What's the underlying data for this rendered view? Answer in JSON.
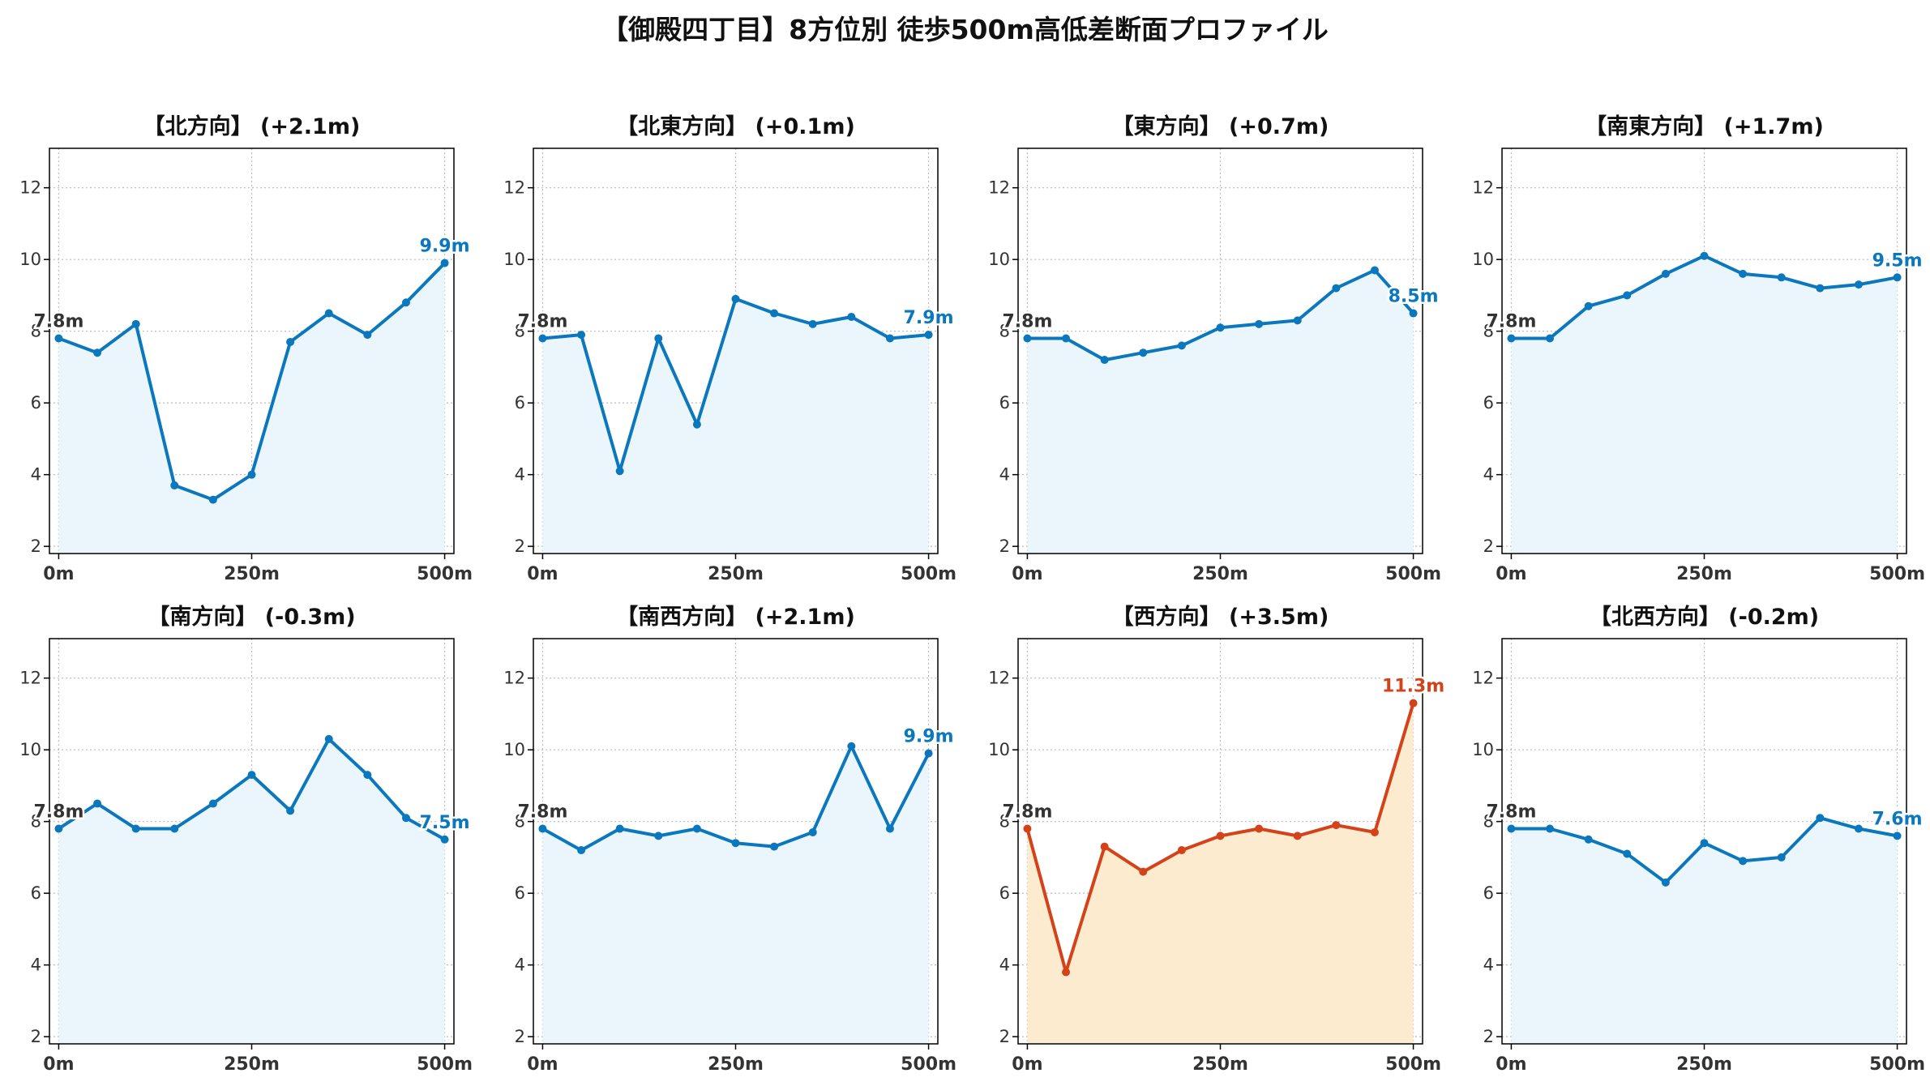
{
  "title": "【御殿四丁目】8方位別 徒歩500m高低差断面プロファイル",
  "colors": {
    "normal_line": "#0b77bd",
    "normal_fill": "#eaf6fb",
    "highlight_line": "#d4421a",
    "highlight_fill": "#fdebd0",
    "grid": "#bbbbbb",
    "start_label": "#333333"
  },
  "chart_data": [
    {
      "type": "area",
      "title": "【北方向】 (+2.1m)",
      "x": [
        0,
        50,
        100,
        150,
        200,
        250,
        300,
        350,
        400,
        450,
        500
      ],
      "y": [
        7.8,
        7.4,
        8.2,
        3.7,
        3.3,
        4.0,
        7.7,
        8.5,
        7.9,
        8.8,
        9.9
      ],
      "start_label": "7.8m",
      "end_label": "9.9m",
      "highlight": false,
      "x_tick_labels": [
        "0m",
        "250m",
        "500m"
      ],
      "y_ticks": [
        2,
        4,
        6,
        8,
        10,
        12
      ],
      "ylim": [
        1.8,
        13.1
      ],
      "xlim": [
        -12,
        512
      ],
      "grid": true
    },
    {
      "type": "area",
      "title": "【北東方向】 (+0.1m)",
      "x": [
        0,
        50,
        100,
        150,
        200,
        250,
        300,
        350,
        400,
        450,
        500
      ],
      "y": [
        7.8,
        7.9,
        4.1,
        7.8,
        5.4,
        8.9,
        8.5,
        8.2,
        8.4,
        7.8,
        7.9
      ],
      "start_label": "7.8m",
      "end_label": "7.9m",
      "highlight": false,
      "x_tick_labels": [
        "0m",
        "250m",
        "500m"
      ],
      "y_ticks": [
        2,
        4,
        6,
        8,
        10,
        12
      ],
      "ylim": [
        1.8,
        13.1
      ],
      "xlim": [
        -12,
        512
      ],
      "grid": true
    },
    {
      "type": "area",
      "title": "【東方向】 (+0.7m)",
      "x": [
        0,
        50,
        100,
        150,
        200,
        250,
        300,
        350,
        400,
        450,
        500
      ],
      "y": [
        7.8,
        7.8,
        7.2,
        7.4,
        7.6,
        8.1,
        8.2,
        8.3,
        9.2,
        9.7,
        8.5
      ],
      "start_label": "7.8m",
      "end_label": "8.5m",
      "highlight": false,
      "x_tick_labels": [
        "0m",
        "250m",
        "500m"
      ],
      "y_ticks": [
        2,
        4,
        6,
        8,
        10,
        12
      ],
      "ylim": [
        1.8,
        13.1
      ],
      "xlim": [
        -12,
        512
      ],
      "grid": true
    },
    {
      "type": "area",
      "title": "【南東方向】 (+1.7m)",
      "x": [
        0,
        50,
        100,
        150,
        200,
        250,
        300,
        350,
        400,
        450,
        500
      ],
      "y": [
        7.8,
        7.8,
        8.7,
        9.0,
        9.6,
        10.1,
        9.6,
        9.5,
        9.2,
        9.3,
        9.5
      ],
      "start_label": "7.8m",
      "end_label": "9.5m",
      "highlight": false,
      "x_tick_labels": [
        "0m",
        "250m",
        "500m"
      ],
      "y_ticks": [
        2,
        4,
        6,
        8,
        10,
        12
      ],
      "ylim": [
        1.8,
        13.1
      ],
      "xlim": [
        -12,
        512
      ],
      "grid": true
    },
    {
      "type": "area",
      "title": "【南方向】 (-0.3m)",
      "x": [
        0,
        50,
        100,
        150,
        200,
        250,
        300,
        350,
        400,
        450,
        500
      ],
      "y": [
        7.8,
        8.5,
        7.8,
        7.8,
        8.5,
        9.3,
        8.3,
        10.3,
        9.3,
        8.1,
        7.5
      ],
      "start_label": "7.8m",
      "end_label": "7.5m",
      "highlight": false,
      "x_tick_labels": [
        "0m",
        "250m",
        "500m"
      ],
      "y_ticks": [
        2,
        4,
        6,
        8,
        10,
        12
      ],
      "ylim": [
        1.8,
        13.1
      ],
      "xlim": [
        -12,
        512
      ],
      "grid": true
    },
    {
      "type": "area",
      "title": "【南西方向】 (+2.1m)",
      "x": [
        0,
        50,
        100,
        150,
        200,
        250,
        300,
        350,
        400,
        450,
        500
      ],
      "y": [
        7.8,
        7.2,
        7.8,
        7.6,
        7.8,
        7.4,
        7.3,
        7.7,
        10.1,
        7.8,
        9.9
      ],
      "start_label": "7.8m",
      "end_label": "9.9m",
      "highlight": false,
      "x_tick_labels": [
        "0m",
        "250m",
        "500m"
      ],
      "y_ticks": [
        2,
        4,
        6,
        8,
        10,
        12
      ],
      "ylim": [
        1.8,
        13.1
      ],
      "xlim": [
        -12,
        512
      ],
      "grid": true
    },
    {
      "type": "area",
      "title": "【西方向】 (+3.5m)",
      "x": [
        0,
        50,
        100,
        150,
        200,
        250,
        300,
        350,
        400,
        450,
        500
      ],
      "y": [
        7.8,
        3.8,
        7.3,
        6.6,
        7.2,
        7.6,
        7.8,
        7.6,
        7.9,
        7.7,
        11.3
      ],
      "start_label": "7.8m",
      "end_label": "11.3m",
      "highlight": true,
      "x_tick_labels": [
        "0m",
        "250m",
        "500m"
      ],
      "y_ticks": [
        2,
        4,
        6,
        8,
        10,
        12
      ],
      "ylim": [
        1.8,
        13.1
      ],
      "xlim": [
        -12,
        512
      ],
      "grid": true
    },
    {
      "type": "area",
      "title": "【北西方向】 (-0.2m)",
      "x": [
        0,
        50,
        100,
        150,
        200,
        250,
        300,
        350,
        400,
        450,
        500
      ],
      "y": [
        7.8,
        7.8,
        7.5,
        7.1,
        6.3,
        7.4,
        6.9,
        7.0,
        8.1,
        7.8,
        7.6
      ],
      "start_label": "7.8m",
      "end_label": "7.6m",
      "highlight": false,
      "x_tick_labels": [
        "0m",
        "250m",
        "500m"
      ],
      "y_ticks": [
        2,
        4,
        6,
        8,
        10,
        12
      ],
      "ylim": [
        1.8,
        13.1
      ],
      "xlim": [
        -12,
        512
      ],
      "grid": true
    }
  ]
}
